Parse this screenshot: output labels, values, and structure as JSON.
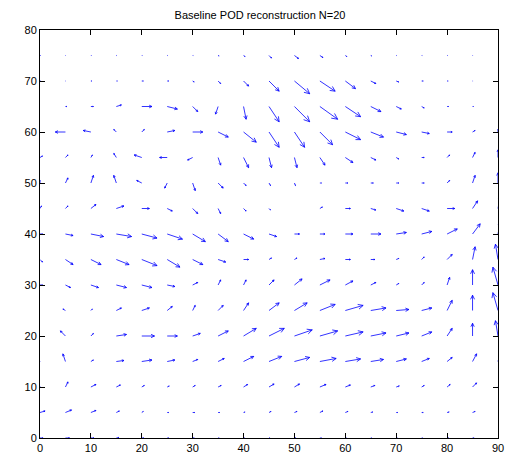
{
  "chart_data": {
    "type": "quiver",
    "title": "Baseline POD reconstruction N=20",
    "color": "#0000ff",
    "xlim": [
      0,
      90
    ],
    "ylim": [
      0,
      80
    ],
    "xticks": [
      0,
      10,
      20,
      30,
      40,
      50,
      60,
      70,
      80,
      90
    ],
    "yticks": [
      0,
      10,
      20,
      30,
      40,
      50,
      60,
      70,
      80
    ],
    "grid": false,
    "x": [
      0,
      5,
      10,
      15,
      20,
      25,
      30,
      35,
      40,
      45,
      50,
      55,
      60,
      65,
      70,
      75,
      80,
      85,
      90
    ],
    "y": [
      0,
      5,
      10,
      15,
      20,
      25,
      30,
      35,
      40,
      45,
      50,
      55,
      60,
      65,
      70,
      75
    ],
    "u": [
      [
        0.6,
        0.8,
        0.6,
        0.5,
        0.4,
        0.3,
        0.3,
        0.2,
        0.2,
        0.2,
        0.3,
        0.3,
        0.2,
        0.2,
        0.2,
        0.2,
        0.3,
        0.3,
        0.3
      ],
      [
        1.0,
        1.2,
        1.0,
        0.6,
        0.3,
        0.3,
        0.4,
        0.3,
        0.3,
        0.4,
        0.5,
        0.6,
        0.5,
        0.4,
        0.3,
        0.3,
        0.4,
        0.5,
        0.6
      ],
      [
        -0.5,
        0.5,
        1.0,
        0.8,
        0.5,
        0.4,
        0.5,
        0.6,
        0.8,
        1.0,
        1.0,
        1.2,
        1.0,
        0.8,
        0.6,
        0.5,
        0.6,
        0.8,
        1.0
      ],
      [
        -1.5,
        -0.5,
        0.5,
        1.5,
        2.0,
        1.5,
        1.0,
        1.2,
        2.0,
        2.5,
        3.0,
        3.2,
        3.0,
        2.5,
        2.0,
        1.5,
        1.0,
        0.8,
        0.5
      ],
      [
        -2.5,
        -1.0,
        0.5,
        2.0,
        2.5,
        2.0,
        1.5,
        2.0,
        2.5,
        3.0,
        3.5,
        3.5,
        3.5,
        3.0,
        2.5,
        2.0,
        1.0,
        0.0,
        -0.5
      ],
      [
        -1.0,
        -0.5,
        0.3,
        1.0,
        1.5,
        1.0,
        0.5,
        1.0,
        1.0,
        2.0,
        2.5,
        3.0,
        3.5,
        3.0,
        2.5,
        2.0,
        1.0,
        0.0,
        -1.0
      ],
      [
        0.5,
        1.0,
        1.5,
        2.0,
        2.0,
        1.5,
        1.0,
        0.5,
        0.5,
        1.0,
        1.5,
        2.0,
        1.5,
        1.0,
        0.5,
        0.5,
        0.5,
        0.0,
        -1.0
      ],
      [
        0.5,
        1.5,
        2.0,
        2.5,
        3.0,
        2.5,
        2.0,
        1.5,
        1.0,
        0.5,
        0.5,
        1.0,
        1.0,
        0.8,
        0.5,
        0.5,
        1.0,
        0.5,
        -0.5
      ],
      [
        0.5,
        1.5,
        2.5,
        3.0,
        3.0,
        3.0,
        2.5,
        2.0,
        2.0,
        1.5,
        1.0,
        1.0,
        1.5,
        2.0,
        2.0,
        2.0,
        2.0,
        1.5,
        0.5
      ],
      [
        0.3,
        0.5,
        1.0,
        1.5,
        1.5,
        1.0,
        1.0,
        0.5,
        0.5,
        0.3,
        0.0,
        0.5,
        1.0,
        1.0,
        1.5,
        1.5,
        1.5,
        1.0,
        0.5
      ],
      [
        0.0,
        0.5,
        0.5,
        -0.5,
        -1.0,
        -0.5,
        0.5,
        1.0,
        0.5,
        0.3,
        0.2,
        0.3,
        0.5,
        0.5,
        0.5,
        0.5,
        0.5,
        0.5,
        0.0
      ],
      [
        0.5,
        0.5,
        0.3,
        -0.5,
        -1.5,
        -1.5,
        -1.0,
        0.5,
        1.0,
        0.5,
        0.5,
        1.0,
        1.5,
        1.0,
        0.5,
        0.5,
        0.5,
        0.5,
        0.0
      ],
      [
        -2.0,
        -2.0,
        -1.5,
        -0.5,
        0.5,
        1.5,
        2.0,
        2.0,
        2.5,
        2.0,
        2.0,
        2.5,
        3.0,
        2.5,
        2.0,
        1.5,
        1.0,
        0.5,
        0.0
      ],
      [
        0.0,
        0.3,
        0.5,
        1.0,
        2.0,
        2.0,
        1.0,
        -0.5,
        0.5,
        2.0,
        3.0,
        3.5,
        3.0,
        2.0,
        1.0,
        0.5,
        0.3,
        0.2,
        0.0
      ],
      [
        0.1,
        0.1,
        0.2,
        0.2,
        0.3,
        0.3,
        0.3,
        0.5,
        1.0,
        2.0,
        3.0,
        3.0,
        2.0,
        1.0,
        0.5,
        0.3,
        0.2,
        0.1,
        0.1
      ],
      [
        0.1,
        0.1,
        0.1,
        0.1,
        0.1,
        0.1,
        0.1,
        0.2,
        0.3,
        0.5,
        0.8,
        0.6,
        0.3,
        0.2,
        0.1,
        0.1,
        0.1,
        0.1,
        0.1
      ]
    ],
    "v": [
      [
        0,
        0,
        0,
        0.1,
        0,
        0,
        0,
        0,
        0,
        0,
        0,
        0,
        0,
        0,
        0,
        0,
        0,
        0,
        0
      ],
      [
        0.3,
        0.5,
        0.4,
        0.3,
        0.2,
        0,
        0,
        0,
        0.1,
        0.2,
        0.2,
        0.3,
        0.2,
        0.1,
        0,
        0,
        0.1,
        0.2,
        0.3
      ],
      [
        1.5,
        1.0,
        0.5,
        0.4,
        0.3,
        0.2,
        0.3,
        0.3,
        0.5,
        0.6,
        0.6,
        0.5,
        0.4,
        0.3,
        0.2,
        0.3,
        0.5,
        0.8,
        1.2
      ],
      [
        2.5,
        1.5,
        0.3,
        0.2,
        0.3,
        0.3,
        0.4,
        0.6,
        1.0,
        1.0,
        0.8,
        0.6,
        0.5,
        0.4,
        0.5,
        0.6,
        0.8,
        1.5,
        2.0
      ],
      [
        1.5,
        1.0,
        0.5,
        0.3,
        0.0,
        0.0,
        0.5,
        1.0,
        1.5,
        1.5,
        1.2,
        1.0,
        0.8,
        0.6,
        0.6,
        0.8,
        1.5,
        2.5,
        3.0
      ],
      [
        0.5,
        0.3,
        0.3,
        0.5,
        0.5,
        0.8,
        1.0,
        1.0,
        1.5,
        1.5,
        1.5,
        1.2,
        1.0,
        0.5,
        0.2,
        0.5,
        2.0,
        3.0,
        3.5
      ],
      [
        0.0,
        -0.5,
        -0.5,
        -0.5,
        -0.5,
        -0.3,
        0.5,
        1.0,
        1.0,
        1.0,
        1.2,
        1.0,
        0.8,
        0.5,
        0.3,
        0.5,
        1.5,
        3.0,
        3.5
      ],
      [
        -0.5,
        -1.0,
        -1.0,
        -1.0,
        -1.2,
        -1.5,
        -1.0,
        -0.5,
        0.0,
        0.3,
        0.3,
        0.2,
        0.0,
        0.0,
        0.2,
        0.5,
        1.0,
        2.5,
        3.0
      ],
      [
        0.0,
        -0.3,
        -0.5,
        -0.5,
        -0.8,
        -1.0,
        -1.5,
        -1.5,
        -1.0,
        -0.5,
        0.0,
        0.0,
        0.0,
        0.0,
        0.3,
        0.5,
        1.0,
        2.0,
        2.5
      ],
      [
        0.5,
        0.5,
        0.8,
        0.5,
        0.0,
        -0.5,
        -1.0,
        -1.0,
        -0.5,
        -0.3,
        0.0,
        0.3,
        0.0,
        -0.3,
        -0.5,
        -0.5,
        0.0,
        1.5,
        2.5
      ],
      [
        0.5,
        1.0,
        1.5,
        1.5,
        0.5,
        -1.0,
        -1.5,
        -1.0,
        -0.5,
        -0.5,
        -0.5,
        0.0,
        0.0,
        0.0,
        0.0,
        0.0,
        0.5,
        1.5,
        2.0
      ],
      [
        0.3,
        0.5,
        0.5,
        0.8,
        0.5,
        0.0,
        -0.5,
        -1.5,
        -2.0,
        -2.0,
        -2.0,
        -1.5,
        -1.0,
        -0.5,
        -0.3,
        0.0,
        0.5,
        1.0,
        1.5
      ],
      [
        0.0,
        0.0,
        0.3,
        0.5,
        0.5,
        0.3,
        0.0,
        -1.0,
        -2.0,
        -3.0,
        -3.0,
        -2.5,
        -1.5,
        -1.0,
        -0.5,
        -0.3,
        0.0,
        0.3,
        0.5
      ],
      [
        0.0,
        0.0,
        0.0,
        0.3,
        0.0,
        -0.5,
        -1.0,
        -1.5,
        -2.5,
        -3.0,
        -3.0,
        -2.5,
        -2.0,
        -1.0,
        -0.5,
        -0.3,
        0.0,
        0.0,
        0.0
      ],
      [
        0,
        0,
        0,
        0,
        0,
        0,
        -0.2,
        -0.5,
        -1.0,
        -2.0,
        -2.5,
        -2.0,
        -1.5,
        -0.5,
        -0.2,
        0,
        0,
        0,
        0
      ],
      [
        0,
        0,
        0,
        0,
        0,
        0,
        0,
        -0.1,
        -0.2,
        -0.5,
        -0.6,
        -0.4,
        -0.2,
        -0.1,
        0,
        0,
        0,
        0,
        0
      ]
    ]
  }
}
